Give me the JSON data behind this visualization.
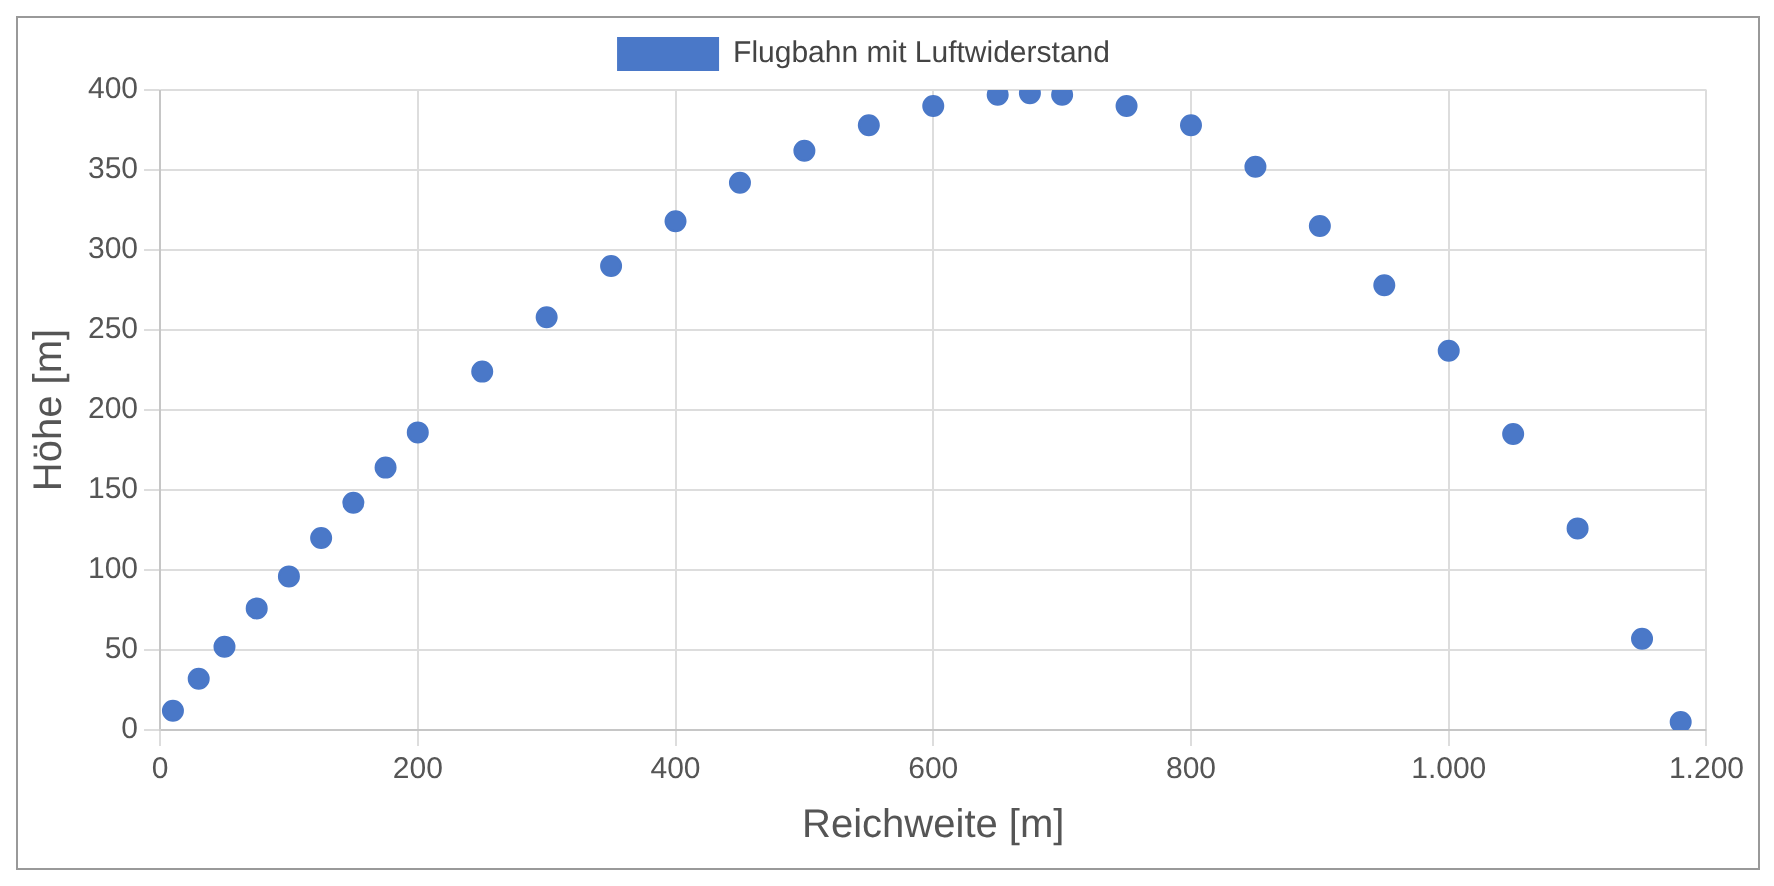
{
  "chart_data": {
    "type": "scatter",
    "xlabel": "Reichweite [m]",
    "ylabel": "Höhe [m]",
    "legend": "top",
    "grid": true,
    "marker": "circle",
    "xlim": [
      0,
      1200
    ],
    "xticks": [
      0,
      200,
      400,
      600,
      800,
      {
        "value": 1000,
        "label": "1.000"
      },
      {
        "value": 1200,
        "label": "1.200"
      }
    ],
    "ylim": [
      0,
      400
    ],
    "yticks": [
      0,
      50,
      100,
      150,
      200,
      250,
      300,
      350,
      400
    ],
    "series": [
      {
        "name": "Flugbahn mit Luftwiderstand",
        "color": "#4a78c8",
        "x": [
          10,
          30,
          50,
          75,
          100,
          125,
          150,
          175,
          200,
          250,
          300,
          350,
          400,
          450,
          500,
          550,
          600,
          650,
          675,
          700,
          750,
          800,
          850,
          900,
          950,
          1000,
          1050,
          1100,
          1150,
          1180
        ],
        "values": [
          12,
          32,
          52,
          76,
          96,
          120,
          142,
          164,
          186,
          224,
          258,
          290,
          318,
          342,
          362,
          378,
          390,
          397,
          398,
          397,
          390,
          378,
          352,
          315,
          278,
          237,
          185,
          126,
          57,
          5
        ]
      }
    ]
  }
}
